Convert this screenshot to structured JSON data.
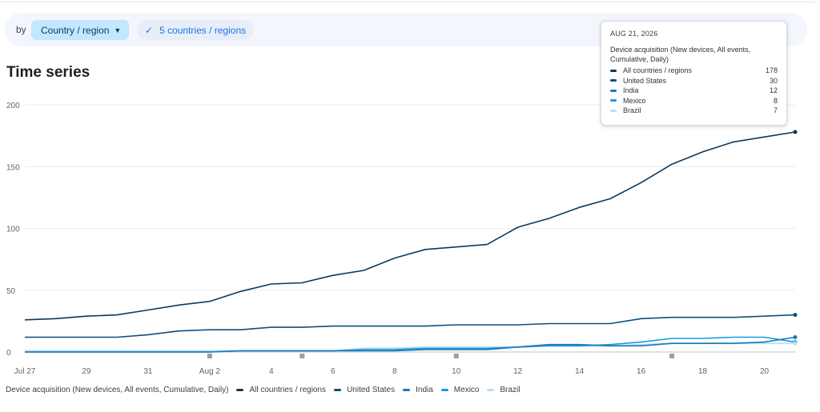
{
  "filters": {
    "by_label": "by",
    "dimension_chip": "Country / region",
    "selection_chip": "5 countries / regions"
  },
  "card_title": "Time series",
  "tooltip": {
    "date": "AUG 21, 2026",
    "metric": "Device acquisition (New devices, All events, Cumulative, Daily)",
    "rows": [
      {
        "name": "All countries / regions",
        "value": "178"
      },
      {
        "name": "United States",
        "value": "30"
      },
      {
        "name": "India",
        "value": "12"
      },
      {
        "name": "Mexico",
        "value": "8"
      },
      {
        "name": "Brazil",
        "value": "7"
      }
    ]
  },
  "legend": {
    "metric": "Device acquisition (New devices, All events, Cumulative, Daily)"
  },
  "colors": {
    "All countries / regions": "#0b3a5c",
    "United States": "#0d4f7c",
    "India": "#1f78b4",
    "Mexico": "#1a9ae0",
    "Brazil": "#b8e0f7"
  },
  "chart_data": {
    "type": "line",
    "x": [
      "Jul 27",
      "Jul 28",
      "Jul 29",
      "Jul 30",
      "Jul 31",
      "Aug 1",
      "Aug 2",
      "Aug 3",
      "Aug 4",
      "Aug 5",
      "Aug 6",
      "Aug 7",
      "Aug 8",
      "Aug 9",
      "Aug 10",
      "Aug 11",
      "Aug 12",
      "Aug 13",
      "Aug 14",
      "Aug 15",
      "Aug 16",
      "Aug 17",
      "Aug 18",
      "Aug 19",
      "Aug 20",
      "Aug 21"
    ],
    "xticks": [
      "Jul 27",
      "29",
      "31",
      "Aug 2",
      "4",
      "6",
      "8",
      "10",
      "12",
      "14",
      "16",
      "18",
      "20"
    ],
    "yticks": [
      0,
      50,
      100,
      150,
      200
    ],
    "ylim": [
      0,
      200
    ],
    "series": [
      {
        "name": "All countries / regions",
        "values": [
          26,
          27,
          29,
          30,
          34,
          38,
          41,
          49,
          55,
          56,
          62,
          66,
          76,
          83,
          85,
          87,
          101,
          108,
          117,
          124,
          137,
          152,
          162,
          170,
          174,
          178
        ]
      },
      {
        "name": "United States",
        "values": [
          12,
          12,
          12,
          12,
          14,
          17,
          18,
          18,
          20,
          20,
          21,
          21,
          21,
          21,
          22,
          22,
          22,
          23,
          23,
          23,
          27,
          28,
          28,
          28,
          29,
          30
        ]
      },
      {
        "name": "India",
        "values": [
          0,
          0,
          0,
          0,
          0,
          0,
          0,
          1,
          1,
          1,
          1,
          1,
          1,
          2,
          2,
          2,
          4,
          6,
          6,
          5,
          5,
          7,
          7,
          7,
          8,
          12
        ]
      },
      {
        "name": "Mexico",
        "values": [
          0,
          0,
          0,
          0,
          0,
          0,
          0,
          1,
          1,
          1,
          1,
          2,
          2,
          3,
          3,
          3,
          4,
          5,
          5,
          6,
          8,
          11,
          11,
          12,
          12,
          8
        ]
      },
      {
        "name": "Brazil",
        "values": [
          1,
          1,
          1,
          1,
          1,
          1,
          1,
          1,
          1,
          1,
          1,
          3,
          3,
          4,
          4,
          4,
          4,
          5,
          5,
          5,
          6,
          7,
          7,
          7,
          7,
          7
        ]
      }
    ],
    "grid": true,
    "legend_position": "bottom"
  }
}
